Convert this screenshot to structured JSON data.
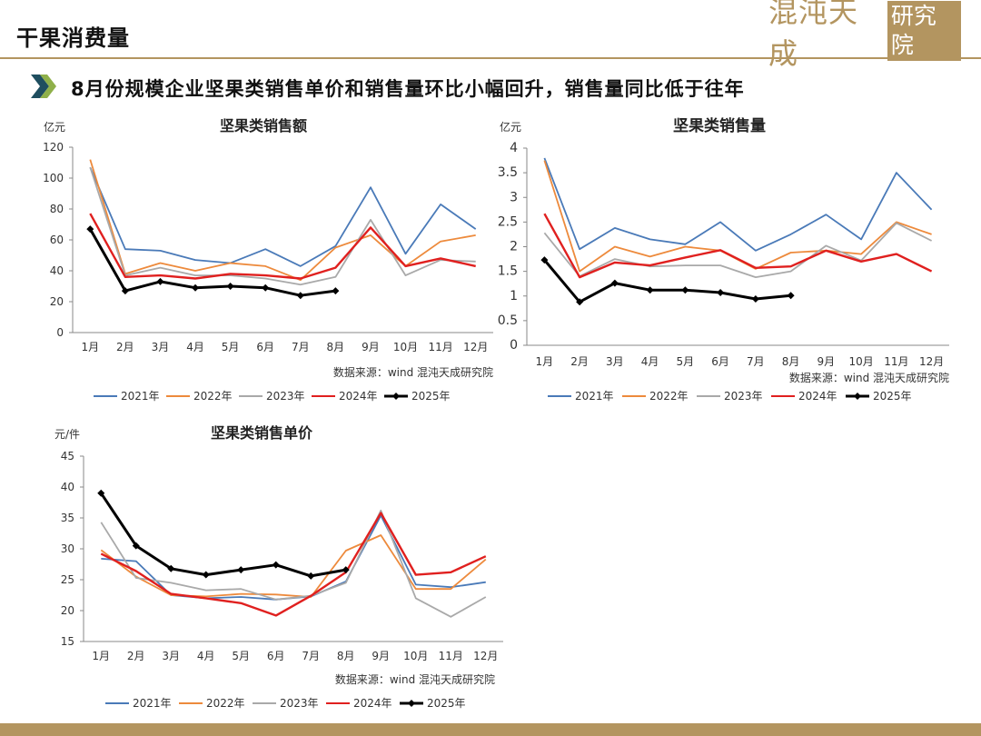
{
  "header": {
    "title": "干果消费量",
    "logo_text": "混沌天成",
    "logo_box_text": "研究院",
    "subtitle": "8月份规模企业坚果类销售单价和销售量环比小幅回升，销售量同比低于往年"
  },
  "colors": {
    "accent": "#b39560",
    "arrow_dark": "#1f4e5f",
    "arrow_light": "#8fb04a",
    "series": [
      "#4a7ab8",
      "#ed8a3c",
      "#a9a9a9",
      "#e0201f",
      "#000000"
    ]
  },
  "icons": {
    "bullet": "double-chevron-icon"
  },
  "chart_data": [
    {
      "type": "line",
      "title": "坚果类销售额",
      "ylabel": "亿元",
      "xlabel": "",
      "categories": [
        "1月",
        "2月",
        "3月",
        "4月",
        "5月",
        "6月",
        "7月",
        "8月",
        "9月",
        "10月",
        "11月",
        "12月"
      ],
      "ylim": [
        0,
        120
      ],
      "yticks": [
        "0",
        "20",
        "40",
        "60",
        "80",
        "100",
        "120"
      ],
      "grid": false,
      "legend": "bottom",
      "source": "数据来源：wind  混沌天成研究院",
      "series": [
        {
          "name": "2021年",
          "values": [
            107,
            54,
            53,
            47,
            45,
            54,
            43,
            56,
            94,
            51,
            83,
            67
          ]
        },
        {
          "name": "2022年",
          "values": [
            112,
            38,
            45,
            40,
            45,
            43,
            34,
            55,
            63,
            43,
            59,
            63
          ]
        },
        {
          "name": "2023年",
          "values": [
            107,
            37,
            42,
            37,
            37,
            35,
            31,
            36,
            73,
            37,
            47,
            46
          ]
        },
        {
          "name": "2024年",
          "values": [
            77,
            36,
            37,
            35,
            38,
            37,
            35,
            42,
            68,
            43,
            48,
            43
          ]
        },
        {
          "name": "2025年",
          "values": [
            67,
            27,
            33,
            29,
            30,
            29,
            24,
            27,
            null,
            null,
            null,
            null
          ]
        }
      ]
    },
    {
      "type": "line",
      "title": "坚果类销售量",
      "ylabel": "亿元",
      "xlabel": "",
      "categories": [
        "1月",
        "2月",
        "3月",
        "4月",
        "5月",
        "6月",
        "7月",
        "8月",
        "9月",
        "10月",
        "11月",
        "12月"
      ],
      "ylim": [
        0,
        4
      ],
      "yticks": [
        "0",
        "0.5",
        "1",
        "1.5",
        "2",
        "2.5",
        "3",
        "3.5",
        "4"
      ],
      "grid": false,
      "legend": "bottom",
      "source": "数据来源：wind  混沌天成研究院",
      "series": [
        {
          "name": "2021年",
          "values": [
            3.8,
            1.95,
            2.38,
            2.15,
            2.05,
            2.5,
            1.92,
            2.25,
            2.65,
            2.15,
            3.5,
            2.75
          ]
        },
        {
          "name": "2022年",
          "values": [
            3.75,
            1.5,
            2.0,
            1.8,
            2.0,
            1.92,
            1.55,
            1.88,
            1.92,
            1.85,
            2.5,
            2.25
          ]
        },
        {
          "name": "2023年",
          "values": [
            2.28,
            1.4,
            1.75,
            1.6,
            1.62,
            1.62,
            1.38,
            1.5,
            2.02,
            1.72,
            2.48,
            2.12
          ]
        },
        {
          "name": "2024年",
          "values": [
            2.67,
            1.38,
            1.68,
            1.62,
            1.78,
            1.93,
            1.57,
            1.6,
            1.92,
            1.7,
            1.85,
            1.5
          ]
        },
        {
          "name": "2025年",
          "values": [
            1.73,
            0.88,
            1.26,
            1.12,
            1.12,
            1.07,
            0.94,
            1.01,
            null,
            null,
            null,
            null
          ]
        }
      ]
    },
    {
      "type": "line",
      "title": "坚果类销售单价",
      "ylabel": "元/件",
      "xlabel": "",
      "categories": [
        "1月",
        "2月",
        "3月",
        "4月",
        "5月",
        "6月",
        "7月",
        "8月",
        "9月",
        "10月",
        "11月",
        "12月"
      ],
      "ylim": [
        15,
        45
      ],
      "yticks": [
        "15",
        "20",
        "25",
        "30",
        "35",
        "40",
        "45"
      ],
      "grid": false,
      "legend": "bottom",
      "source": "数据来源：wind  混沌天成研究院",
      "series": [
        {
          "name": "2021年",
          "values": [
            28.4,
            28.0,
            22.5,
            22.0,
            22.2,
            21.8,
            22.3,
            24.7,
            35.4,
            24.2,
            23.8,
            24.6
          ]
        },
        {
          "name": "2022年",
          "values": [
            29.8,
            25.5,
            22.5,
            22.3,
            22.7,
            22.6,
            22.2,
            29.7,
            32.2,
            23.5,
            23.5,
            28.3
          ]
        },
        {
          "name": "2023年",
          "values": [
            34.3,
            25.3,
            24.5,
            23.3,
            23.5,
            21.8,
            22.4,
            24.5,
            36.2,
            22.0,
            19.0,
            22.2
          ]
        },
        {
          "name": "2024年",
          "values": [
            29.2,
            26.4,
            22.7,
            22.0,
            21.2,
            19.2,
            22.4,
            26.2,
            35.8,
            25.8,
            26.2,
            28.8
          ]
        },
        {
          "name": "2025年",
          "values": [
            39.0,
            30.5,
            26.8,
            25.8,
            26.6,
            27.4,
            25.6,
            26.6,
            null,
            null,
            null,
            null
          ]
        }
      ]
    }
  ]
}
